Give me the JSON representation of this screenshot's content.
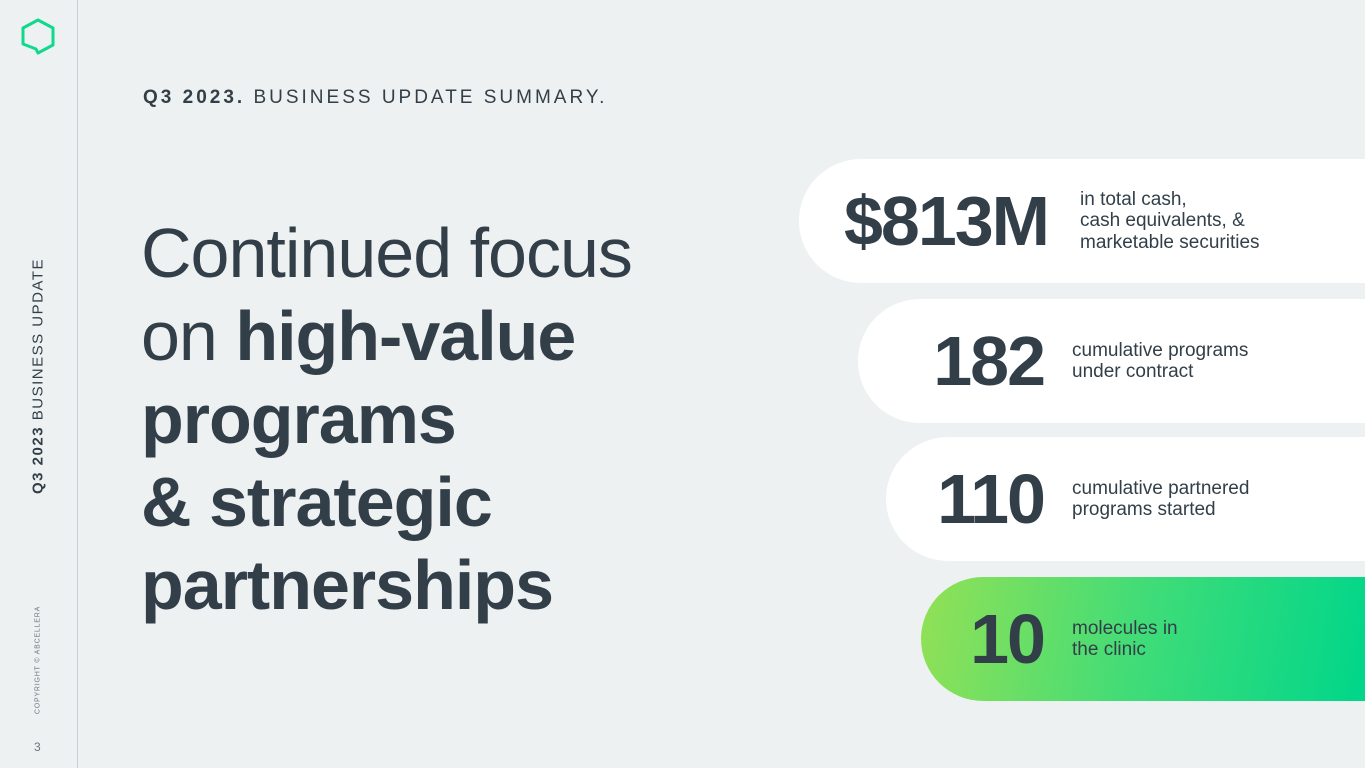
{
  "sidebar": {
    "title_bold": "Q3 2023",
    "title_rest": "BUSINESS UPDATE",
    "copyright": "COPYRIGHT © ABCELLERA",
    "page_number": "3"
  },
  "header": {
    "bold": "Q3 2023.",
    "rest": "BUSINESS UPDATE SUMMARY."
  },
  "headline": {
    "light_lines": [
      "Continued focus",
      "on"
    ],
    "bold_lines": [
      "high-value",
      "programs",
      "& strategic",
      "partnerships"
    ]
  },
  "stats": [
    {
      "value": "$813M",
      "description": [
        "in total cash,",
        "cash equivalents, &",
        "marketable securities"
      ]
    },
    {
      "value": "182",
      "description": [
        "cumulative programs",
        "under contract"
      ]
    },
    {
      "value": "110",
      "description": [
        "cumulative partnered",
        "programs started"
      ]
    },
    {
      "value": "10",
      "description": [
        "molecules in",
        "the clinic"
      ]
    }
  ]
}
